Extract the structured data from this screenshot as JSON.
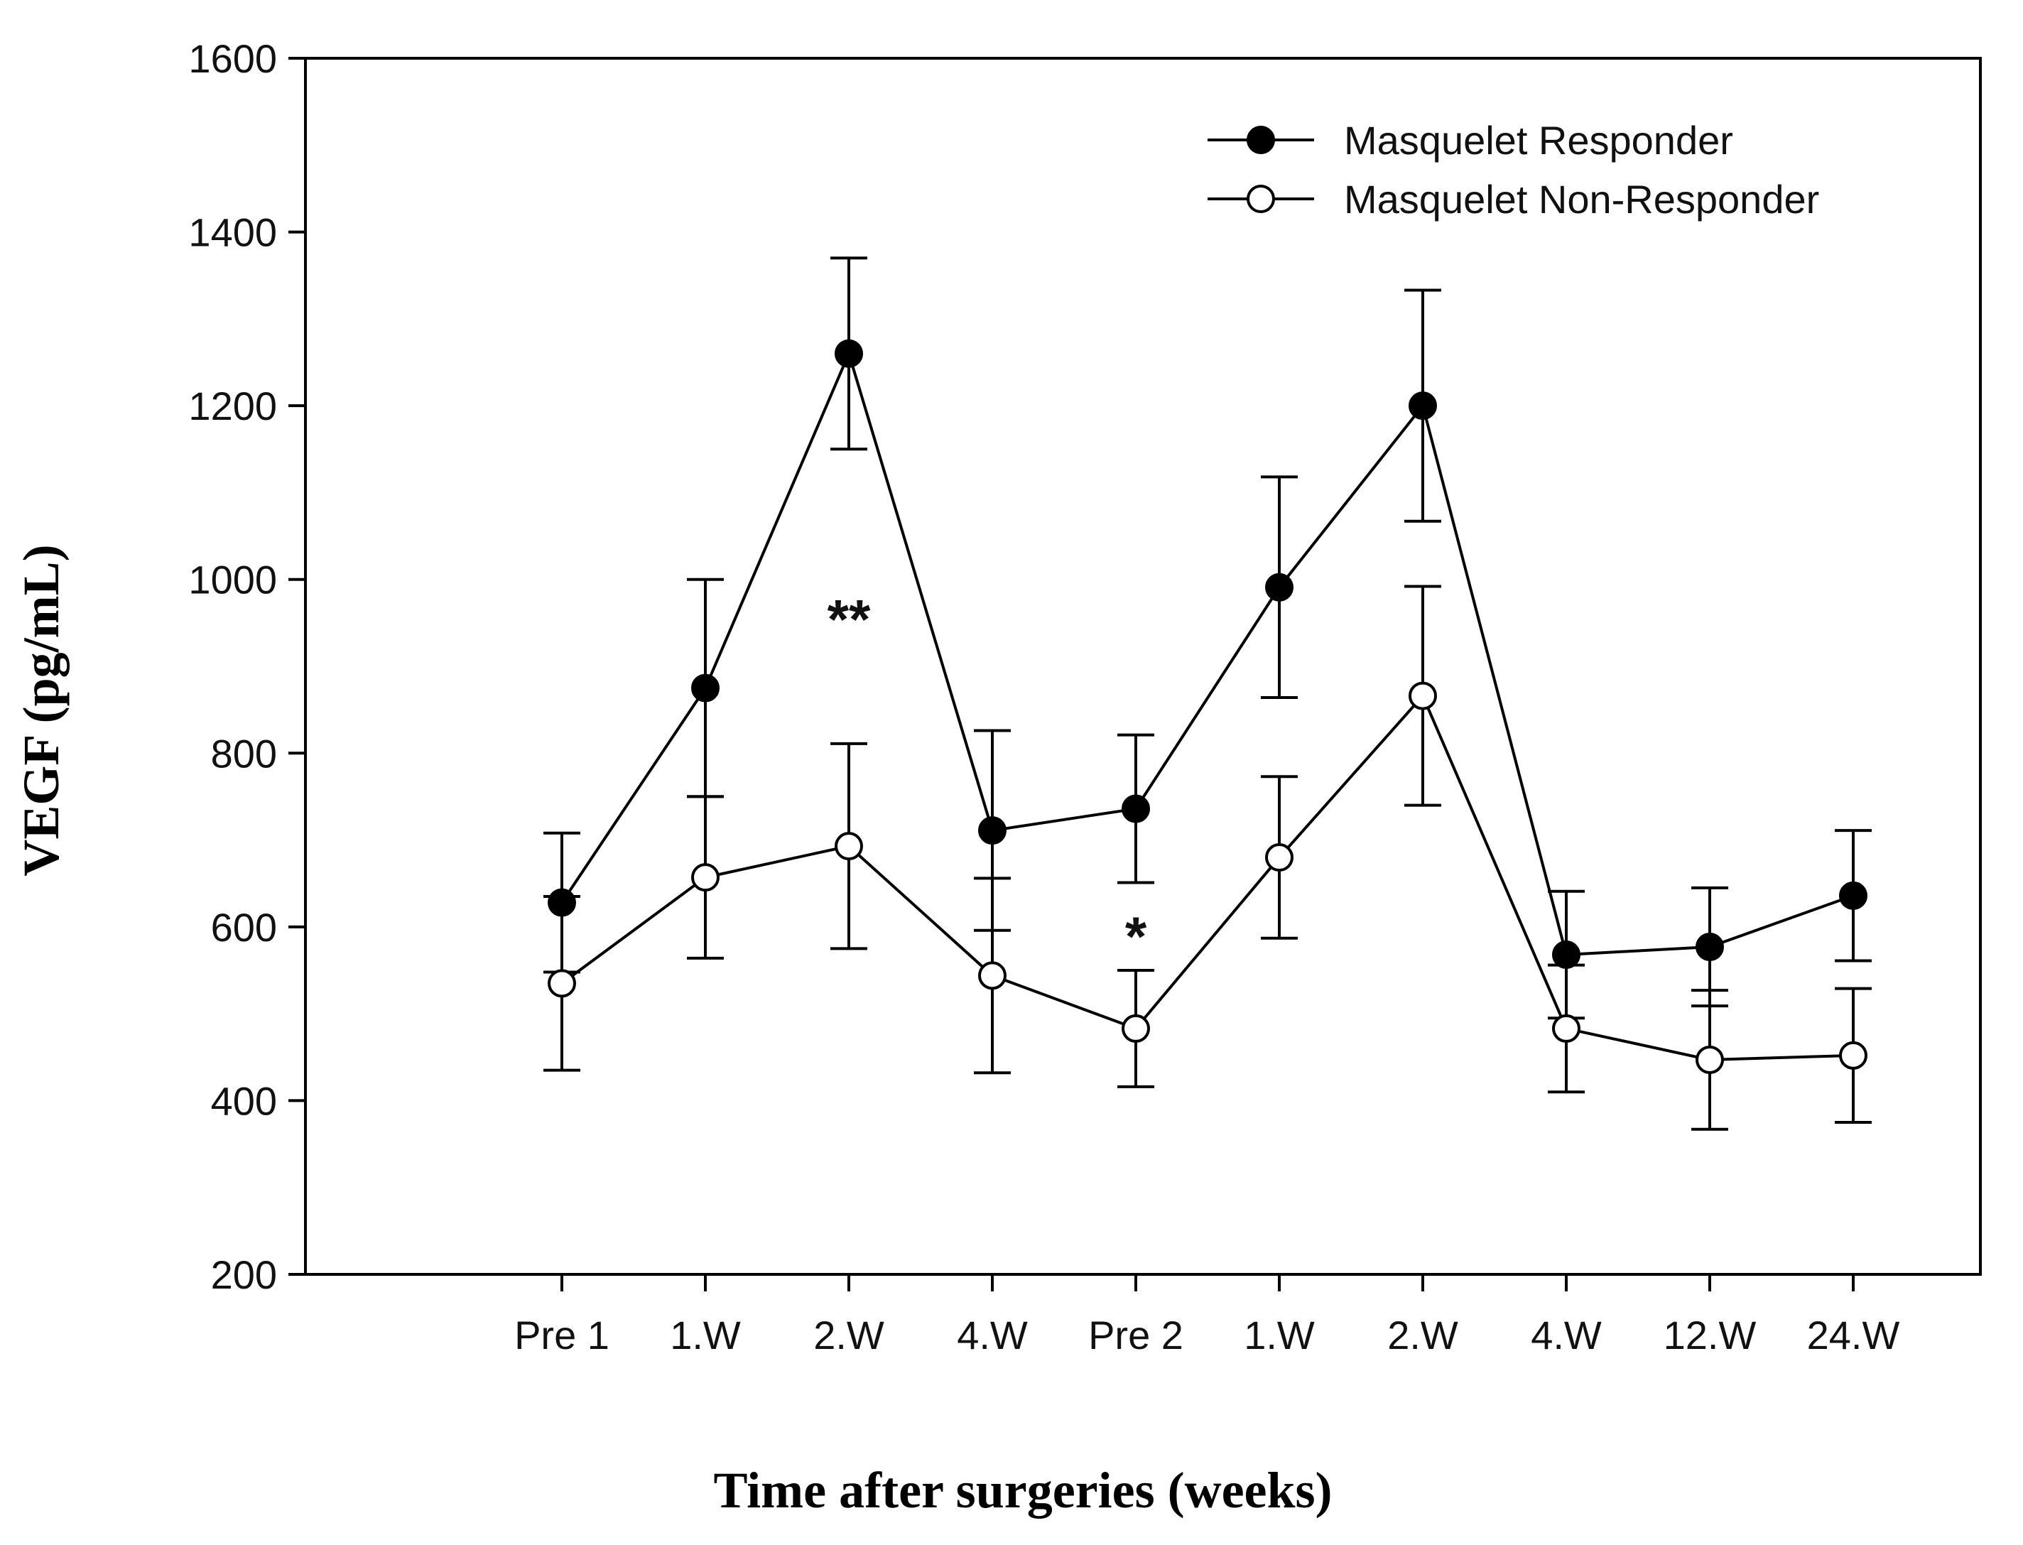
{
  "chart_data": {
    "type": "line",
    "title": "",
    "xlabel": "Time after surgeries (weeks)",
    "ylabel": "VEGF (pg/mL)",
    "ylim": [
      200,
      1600
    ],
    "yticks": [
      200,
      400,
      600,
      800,
      1000,
      1200,
      1400,
      1600
    ],
    "categories": [
      "Pre 1",
      "1.W",
      "2.W",
      "4.W",
      "Pre 2",
      "1.W",
      "2.W",
      "4.W",
      "12.W",
      "24.W"
    ],
    "grid": false,
    "legend_position": "top-right",
    "series": [
      {
        "name": "Masquelet Responder",
        "marker": "filled-circle",
        "values": [
          628,
          875,
          1260,
          711,
          736,
          991,
          1200,
          568,
          577,
          636
        ],
        "error": [
          80,
          125,
          110,
          115,
          85,
          127,
          133,
          73,
          68,
          75
        ]
      },
      {
        "name": "Masquelet Non-Responder",
        "marker": "open-circle",
        "values": [
          535,
          657,
          693,
          544,
          483,
          680,
          866,
          483,
          447,
          452
        ],
        "error": [
          100,
          93,
          118,
          112,
          67,
          93,
          126,
          73,
          80,
          77
        ]
      }
    ],
    "annotations": [
      {
        "text": "**",
        "category_index": 2,
        "y": 965
      },
      {
        "text": "*",
        "category_index": 4,
        "y": 600
      }
    ]
  }
}
